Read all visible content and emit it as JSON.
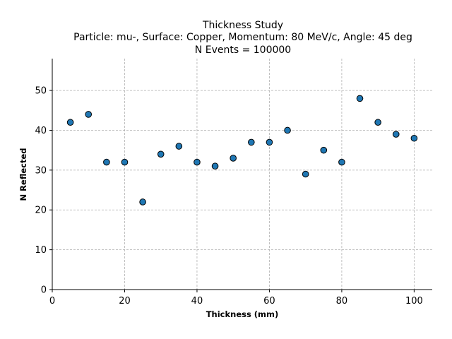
{
  "chart_data": {
    "type": "scatter",
    "title_lines": [
      "Thickness Study",
      "Particle: mu-, Surface: Copper, Momentum: 80 MeV/c, Angle: 45 deg",
      "N Events = 100000"
    ],
    "xlabel": "Thickness (mm)",
    "ylabel": "N Reflected",
    "xlim": [
      0,
      105
    ],
    "ylim": [
      0,
      58
    ],
    "xticks": [
      0,
      20,
      40,
      60,
      80,
      100
    ],
    "yticks": [
      0,
      10,
      20,
      30,
      40,
      50
    ],
    "grid": true,
    "x": [
      5,
      10,
      15,
      20,
      25,
      30,
      35,
      40,
      45,
      50,
      55,
      60,
      65,
      70,
      75,
      80,
      85,
      90,
      95,
      100
    ],
    "y": [
      42,
      44,
      32,
      32,
      22,
      34,
      36,
      32,
      31,
      33,
      37,
      37,
      40,
      29,
      35,
      32,
      48,
      42,
      39,
      38
    ],
    "marker_color": "#1f77b4",
    "marker_edge_color": "#000000"
  }
}
